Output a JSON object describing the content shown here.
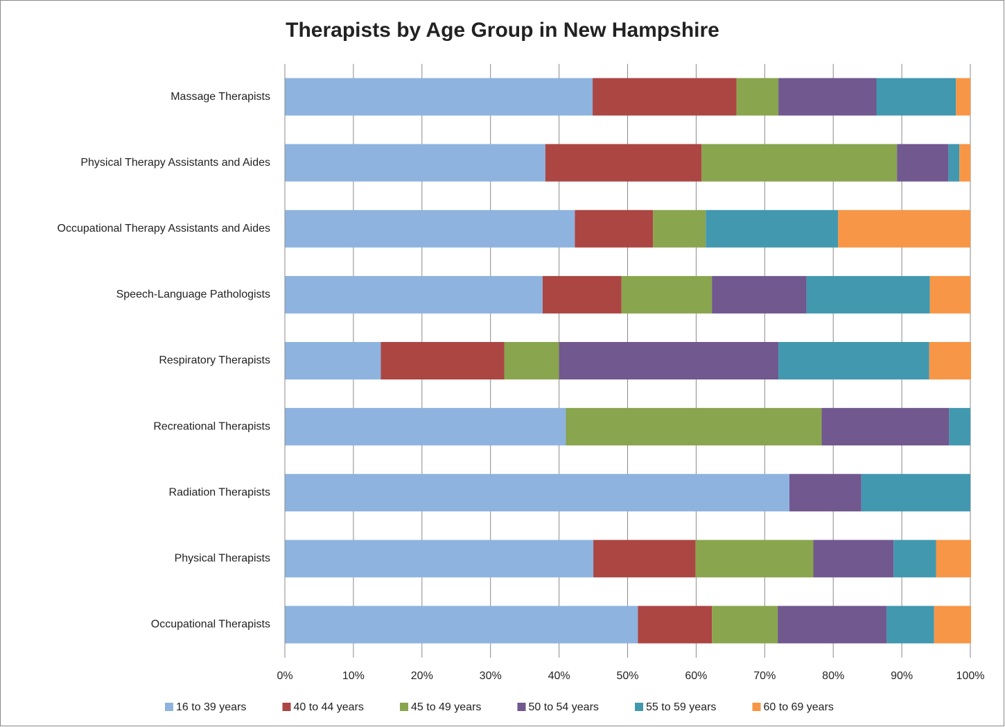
{
  "chart_data": {
    "type": "bar",
    "orientation": "horizontal",
    "stacked": true,
    "title": "Therapists by Age Group in New Hampshire",
    "categories": [
      "Massage Therapists",
      "Physical Therapy Assistants and Aides",
      "Occupational Therapy Assistants and Aides",
      "Speech-Language Pathologists",
      "Respiratory Therapists",
      "Recreational Therapists",
      "Radiation Therapists",
      "Physical Therapists",
      "Occupational Therapists"
    ],
    "series": [
      {
        "name": "16 to 39 years",
        "color": "#8eb3df",
        "values": [
          44.9,
          38.0,
          42.3,
          37.6,
          14.0,
          41.0,
          73.6,
          45.0,
          51.5
        ]
      },
      {
        "name": "40 to 44 years",
        "color": "#ab4643",
        "values": [
          21.0,
          22.8,
          11.4,
          11.5,
          18.0,
          0,
          0,
          14.9,
          10.8
        ]
      },
      {
        "name": "45 to 49 years",
        "color": "#89a54e",
        "values": [
          6.1,
          28.5,
          7.7,
          13.2,
          8.0,
          37.3,
          0,
          17.2,
          9.6
        ]
      },
      {
        "name": "50 to 54 years",
        "color": "#71588f",
        "values": [
          14.3,
          7.5,
          0,
          13.8,
          32.0,
          18.6,
          10.5,
          11.7,
          15.9
        ]
      },
      {
        "name": "55 to 59 years",
        "color": "#4198af",
        "values": [
          11.6,
          1.6,
          19.3,
          18.0,
          22.0,
          3.1,
          15.9,
          6.2,
          6.9
        ]
      },
      {
        "name": "60 to 69 years",
        "color": "#f79646",
        "values": [
          2.1,
          1.6,
          19.3,
          5.9,
          6.1,
          0,
          0,
          5.1,
          5.4
        ]
      }
    ],
    "xlim": [
      0,
      100
    ],
    "xticks": [
      {
        "value": 0,
        "label": "0%"
      },
      {
        "value": 10,
        "label": "10%"
      },
      {
        "value": 20,
        "label": "20%"
      },
      {
        "value": 30,
        "label": "30%"
      },
      {
        "value": 40,
        "label": "40%"
      },
      {
        "value": 50,
        "label": "50%"
      },
      {
        "value": 60,
        "label": "60%"
      },
      {
        "value": 70,
        "label": "70%"
      },
      {
        "value": 80,
        "label": "80%"
      },
      {
        "value": 90,
        "label": "90%"
      },
      {
        "value": 100,
        "label": "100%"
      }
    ],
    "grid": true,
    "legend": "bottom"
  }
}
